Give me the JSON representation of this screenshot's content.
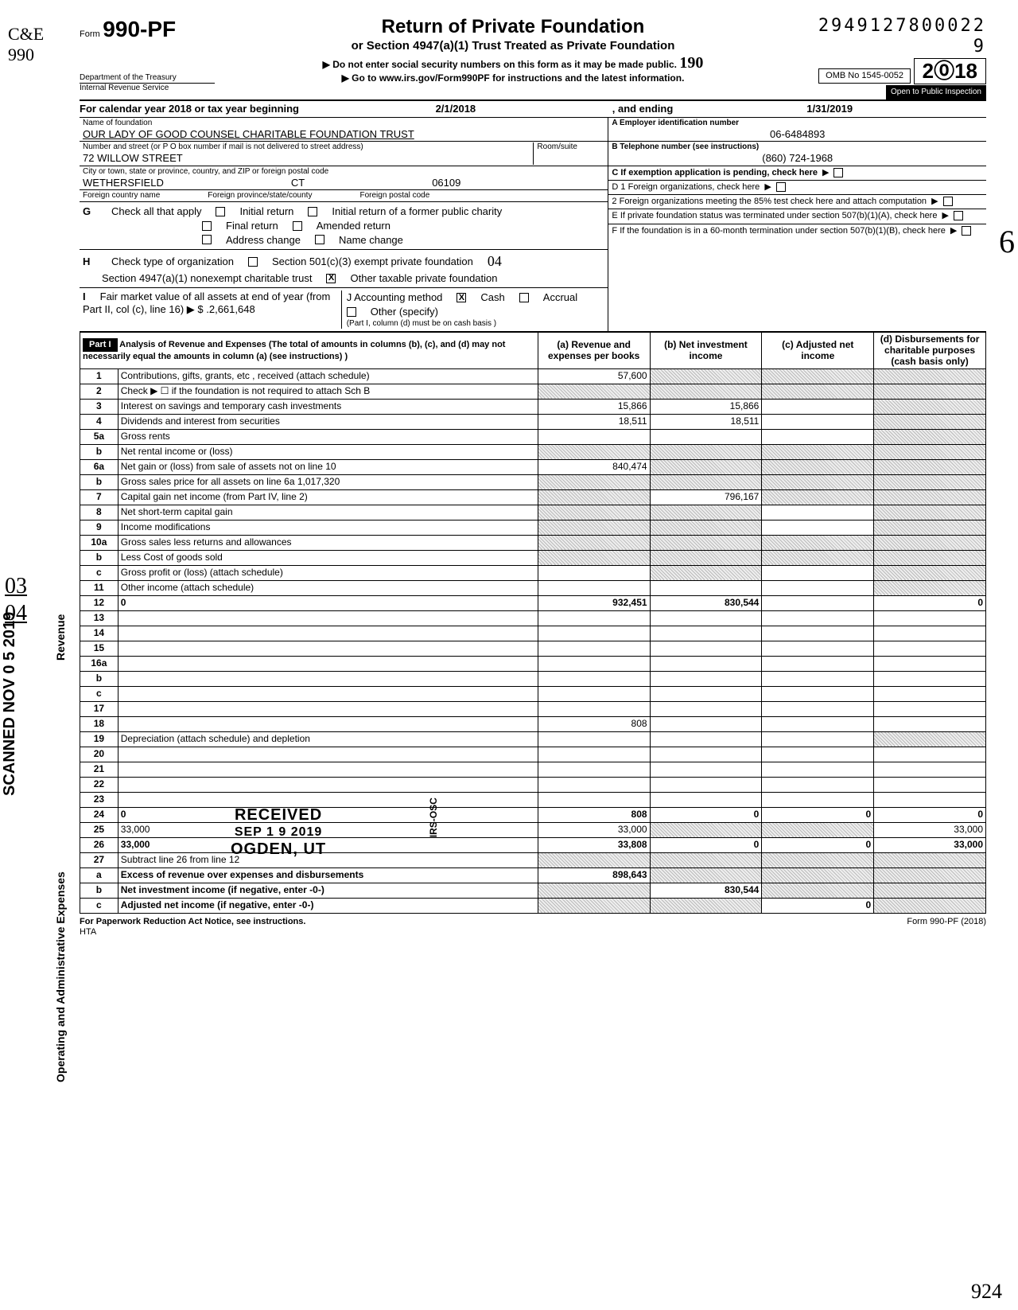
{
  "dln": "2949127800022 9",
  "omb": "OMB No 1545-0052",
  "form_prefix": "Form",
  "form_number": "990-PF",
  "dept1": "Department of the Treasury",
  "dept2": "Internal Revenue Service",
  "title": "Return of Private Foundation",
  "subtitle": "or Section 4947(a)(1) Trust Treated as Private Foundation",
  "note1": "Do not enter social security numbers on this form as it may be made public.",
  "note2": "Go to www.irs.gov/Form990PF for instructions and the latest information.",
  "year_digits": "2018",
  "public": "Open to Public Inspection",
  "handwritten_190": "190",
  "cal_line_a": "For calendar year 2018 or tax year beginning",
  "cal_begin": "2/1/2018",
  "cal_mid": ", and ending",
  "cal_end": "1/31/2019",
  "lbl_name": "Name of foundation",
  "name": "OUR LADY OF GOOD COUNSEL CHARITABLE FOUNDATION TRUST",
  "lbl_addr": "Number and street (or P O box number if mail is not delivered to street address)",
  "lbl_room": "Room/suite",
  "addr": "72 WILLOW STREET",
  "lbl_city": "City or town, state or province, country, and ZIP or foreign postal code",
  "city": "WETHERSFIELD",
  "state": "CT",
  "zip": "06109",
  "lbl_fcountry": "Foreign country name",
  "lbl_fprov": "Foreign province/state/county",
  "lbl_fzip": "Foreign postal code",
  "lbl_A": "A  Employer identification number",
  "ein": "06-6484893",
  "lbl_B": "B  Telephone number (see instructions)",
  "phone": "(860) 724-1968",
  "lbl_C": "C  If exemption application is pending, check here",
  "lbl_G": "Check all that apply",
  "g_items": [
    "Initial return",
    "Final return",
    "Address change",
    "Initial return of a former public charity",
    "Amended return",
    "Name change"
  ],
  "lbl_H": "Check type of organization",
  "h1": "Section 501(c)(3) exempt private foundation",
  "h2": "Section 4947(a)(1) nonexempt charitable trust",
  "h3": "Other taxable private foundation",
  "h_hand": "04",
  "lbl_I": "Fair market value of all assets at end of year (from Part II, col (c), line 16) ▶ $",
  "fmv": ".2,661,648",
  "lbl_J": "J   Accounting method",
  "j1": "Cash",
  "j2": "Accrual",
  "j3": "Other (specify)",
  "j_note": "(Part I, column (d) must be on cash basis )",
  "lbl_D1": "D  1  Foreign organizations, check here",
  "lbl_D2": "2  Foreign organizations meeting the 85% test check here and attach computation",
  "lbl_E": "E  If private foundation status was terminated under section 507(b)(1)(A), check here",
  "lbl_F": "F  If the foundation is in a 60-month termination under section 507(b)(1)(B), check here",
  "part1_label": "Part I",
  "part1_head": "Analysis of Revenue and Expenses (The total of amounts in columns (b), (c), and (d) may not necessarily equal the amounts in column (a) (see instructions) )",
  "col_a": "(a) Revenue and expenses per books",
  "col_b": "(b) Net investment income",
  "col_c": "(c) Adjusted net income",
  "col_d": "(d) Disbursements for charitable purposes (cash basis only)",
  "side_rev": "Revenue",
  "side_op": "Operating and Administrative Expenses",
  "rows": [
    {
      "n": "1",
      "d": "Contributions, gifts, grants, etc , received (attach schedule)",
      "a": "57,600",
      "b_s": true,
      "c_s": true,
      "d_s": true
    },
    {
      "n": "2",
      "d": "Check ▶ ☐  if the foundation is not required to attach Sch B",
      "a_s": true,
      "b_s": true,
      "c_s": true,
      "d_s": true
    },
    {
      "n": "3",
      "d": "Interest on savings and temporary cash investments",
      "a": "15,866",
      "b": "15,866",
      "c": "",
      "d_s": true
    },
    {
      "n": "4",
      "d": "Dividends and interest from securities",
      "a": "18,511",
      "b": "18,511",
      "c": "",
      "d_s": true
    },
    {
      "n": "5a",
      "d": "Gross rents",
      "a": "",
      "b": "",
      "c": "",
      "d_s": true
    },
    {
      "n": "b",
      "d": "Net rental income or (loss)",
      "a_s": true,
      "b_s": true,
      "c_s": true,
      "d_s": true
    },
    {
      "n": "6a",
      "d": "Net gain or (loss) from sale of assets not on line 10",
      "a": "840,474",
      "b_s": true,
      "c_s": true,
      "d_s": true
    },
    {
      "n": "b",
      "d": "Gross sales price for all assets on line 6a          1,017,320",
      "a_s": true,
      "b_s": true,
      "c_s": true,
      "d_s": true
    },
    {
      "n": "7",
      "d": "Capital gain net income (from Part IV, line 2)",
      "a_s": true,
      "b": "796,167",
      "c_s": true,
      "d_s": true
    },
    {
      "n": "8",
      "d": "Net short-term capital gain",
      "a_s": true,
      "b_s": true,
      "c": "",
      "d_s": true
    },
    {
      "n": "9",
      "d": "Income modifications",
      "a_s": true,
      "b_s": true,
      "c": "",
      "d_s": true
    },
    {
      "n": "10a",
      "d": "Gross sales less returns and allowances",
      "a_s": true,
      "b_s": true,
      "c_s": true,
      "d_s": true
    },
    {
      "n": "b",
      "d": "Less  Cost of goods sold",
      "a_s": true,
      "b_s": true,
      "c_s": true,
      "d_s": true
    },
    {
      "n": "c",
      "d": "Gross profit or (loss) (attach schedule)",
      "a": "",
      "b_s": true,
      "c": "",
      "d_s": true
    },
    {
      "n": "11",
      "d": "Other income (attach schedule)",
      "a": "",
      "b": "",
      "c": "",
      "d_s": true
    },
    {
      "n": "12",
      "d": "0",
      "a": "932,451",
      "b": "830,544",
      "c": "",
      "bold": true
    },
    {
      "n": "13",
      "d": "",
      "a": "",
      "b": "",
      "c": ""
    },
    {
      "n": "14",
      "d": "",
      "a": "",
      "b": "",
      "c": ""
    },
    {
      "n": "15",
      "d": "",
      "a": "",
      "b": "",
      "c": ""
    },
    {
      "n": "16a",
      "d": "",
      "a": "",
      "b": "",
      "c": ""
    },
    {
      "n": "b",
      "d": "",
      "a": "",
      "b": "",
      "c": ""
    },
    {
      "n": "c",
      "d": "",
      "a": "",
      "b": "",
      "c": ""
    },
    {
      "n": "17",
      "d": "",
      "a": "",
      "b": "",
      "c": ""
    },
    {
      "n": "18",
      "d": "",
      "a": "808",
      "b": "",
      "c": ""
    },
    {
      "n": "19",
      "d": "Depreciation (attach schedule) and depletion",
      "a": "",
      "b": "",
      "c": "",
      "d_s": true
    },
    {
      "n": "20",
      "d": "",
      "a": "",
      "b": "",
      "c": ""
    },
    {
      "n": "21",
      "d": "",
      "a": "",
      "b": "",
      "c": ""
    },
    {
      "n": "22",
      "d": "",
      "a": "",
      "b": "",
      "c": ""
    },
    {
      "n": "23",
      "d": "",
      "a": "",
      "b": "",
      "c": ""
    },
    {
      "n": "24",
      "d": "0",
      "a": "808",
      "b": "0",
      "c": "0",
      "bold": true
    },
    {
      "n": "25",
      "d": "33,000",
      "a": "33,000",
      "b_s": true,
      "c_s": true
    },
    {
      "n": "26",
      "d": "33,000",
      "a": "33,808",
      "b": "0",
      "c": "0",
      "bold": true
    },
    {
      "n": "27",
      "d": "Subtract line 26 from line 12",
      "a_s": true,
      "b_s": true,
      "c_s": true,
      "d_s": true
    },
    {
      "n": "a",
      "d": "Excess of revenue over expenses and disbursements",
      "a": "898,643",
      "b_s": true,
      "c_s": true,
      "d_s": true,
      "bold": true
    },
    {
      "n": "b",
      "d": "Net investment income (if negative, enter -0-)",
      "a_s": true,
      "b": "830,544",
      "c_s": true,
      "d_s": true,
      "bold": true
    },
    {
      "n": "c",
      "d": "Adjusted net income (if negative, enter -0-)",
      "a_s": true,
      "b_s": true,
      "c": "0",
      "d_s": true,
      "bold": true
    }
  ],
  "stamp_received": "RECEIVED",
  "stamp_date": "SEP 1 9 2019",
  "stamp_loc": "OGDEN, UT",
  "stamp_irs": "IRS-OSC",
  "footer_left": "For Paperwork Reduction Act Notice, see instructions.",
  "footer_hta": "HTA",
  "footer_right": "Form 990-PF (2018)",
  "margin_cre": "C&E\n990",
  "margin_frac": "03\n04",
  "margin_scan": "SCANNED NOV 0 5 2019",
  "margin_6": "6",
  "margin_924": "924"
}
